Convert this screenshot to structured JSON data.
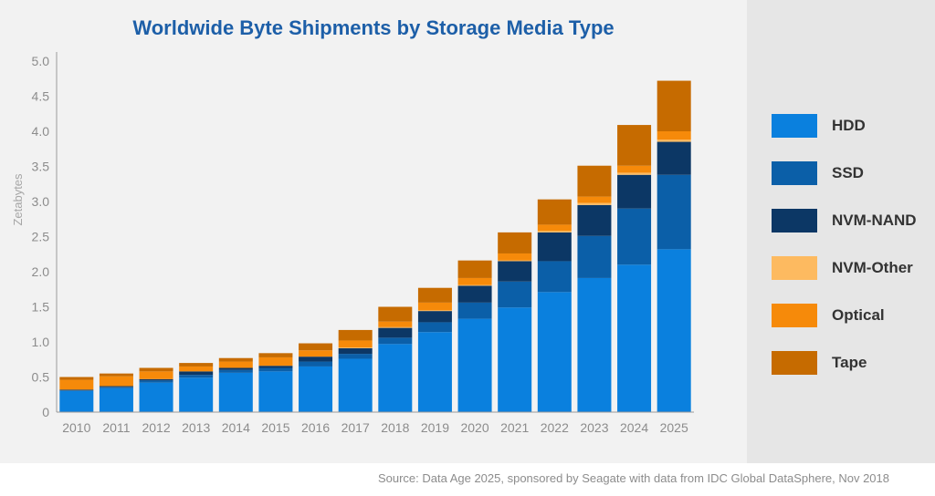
{
  "chart_data": {
    "type": "bar",
    "stacked": true,
    "title": "Worldwide Byte Shipments by Storage Media Type",
    "ylabel": "Zetabytes",
    "xlabel": "",
    "ylim": [
      0,
      5.0
    ],
    "yticks": [
      "0",
      "0.5",
      "1.0",
      "1.5",
      "2.0",
      "2.5",
      "3.0",
      "3.5",
      "4.0",
      "4.5",
      "5.0"
    ],
    "ytick_values": [
      0,
      0.5,
      1.0,
      1.5,
      2.0,
      2.5,
      3.0,
      3.5,
      4.0,
      4.5,
      5.0
    ],
    "grid": false,
    "legend_position": "right",
    "categories": [
      "2010",
      "2011",
      "2012",
      "2013",
      "2014",
      "2015",
      "2016",
      "2017",
      "2018",
      "2019",
      "2020",
      "2021",
      "2022",
      "2023",
      "2024",
      "2025"
    ],
    "series": [
      {
        "name": "HDD",
        "color": "#0a80de",
        "values": [
          0.3,
          0.34,
          0.42,
          0.49,
          0.56,
          0.58,
          0.65,
          0.76,
          0.97,
          1.14,
          1.33,
          1.49,
          1.71,
          1.91,
          2.1,
          2.32
        ]
      },
      {
        "name": "SSD",
        "color": "#0b5fa8",
        "values": [
          0.01,
          0.02,
          0.03,
          0.04,
          0.04,
          0.05,
          0.07,
          0.07,
          0.09,
          0.14,
          0.23,
          0.37,
          0.44,
          0.6,
          0.8,
          1.06
        ]
      },
      {
        "name": "NVM-NAND",
        "color": "#0c3765",
        "values": [
          0.01,
          0.01,
          0.02,
          0.05,
          0.03,
          0.03,
          0.07,
          0.08,
          0.14,
          0.16,
          0.24,
          0.29,
          0.41,
          0.44,
          0.48,
          0.47
        ]
      },
      {
        "name": "NVM-Other",
        "color": "#fdba60",
        "values": [
          0.0,
          0.0,
          0.0,
          0.0,
          0.0,
          0.0,
          0.0,
          0.01,
          0.01,
          0.01,
          0.01,
          0.01,
          0.02,
          0.03,
          0.03,
          0.03
        ]
      },
      {
        "name": "Optical",
        "color": "#f68a0a",
        "values": [
          0.14,
          0.14,
          0.11,
          0.07,
          0.09,
          0.12,
          0.09,
          0.1,
          0.08,
          0.11,
          0.1,
          0.1,
          0.09,
          0.09,
          0.1,
          0.12
        ]
      },
      {
        "name": "Tape",
        "color": "#c66b00",
        "values": [
          0.04,
          0.04,
          0.05,
          0.05,
          0.05,
          0.06,
          0.1,
          0.15,
          0.21,
          0.21,
          0.25,
          0.3,
          0.36,
          0.44,
          0.58,
          0.72
        ]
      }
    ]
  },
  "source_note": "Source: Data Age 2025, sponsored by Seagate with data from IDC Global DataSphere, Nov 2018"
}
